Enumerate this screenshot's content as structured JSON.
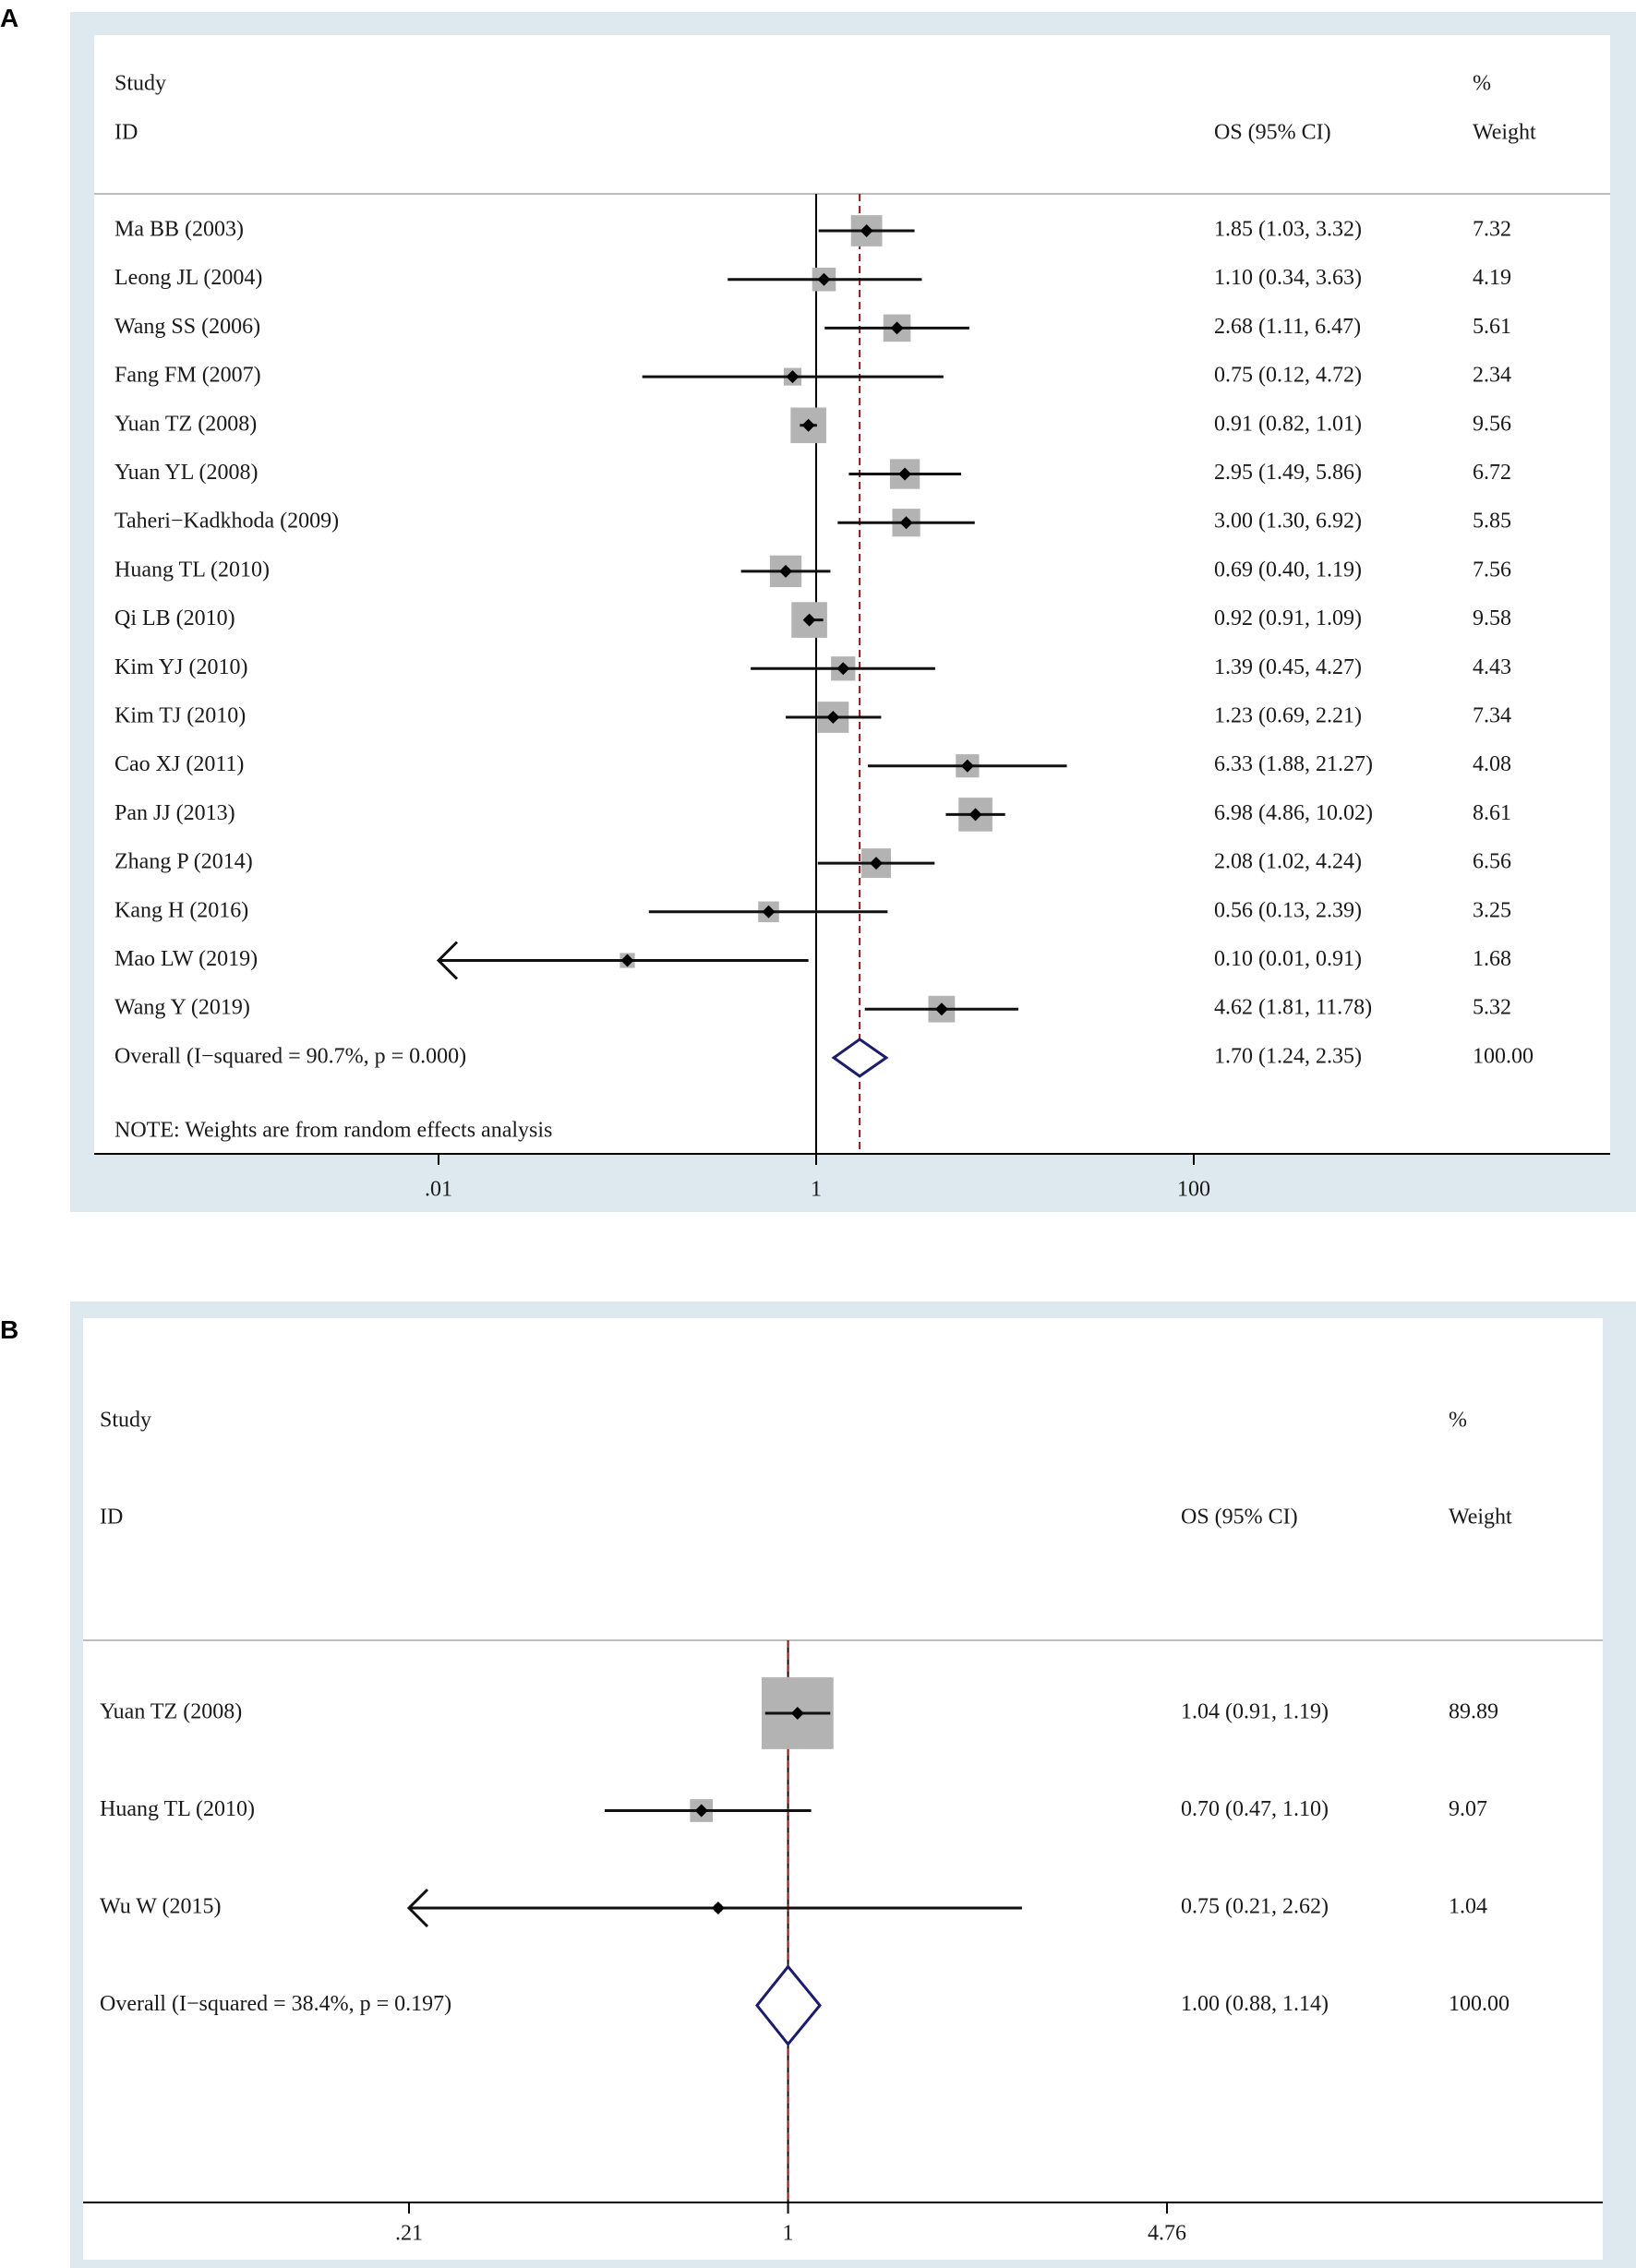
{
  "chart_data": [
    {
      "panel": "A",
      "type": "forest",
      "header": {
        "study": "Study",
        "id": "ID",
        "pct": "%",
        "es": "OS (95% CI)",
        "weight": "Weight"
      },
      "axis": {
        "scale": "log",
        "ticks": [
          ".01",
          "1",
          "100"
        ],
        "tick_values": [
          0.01,
          1,
          100
        ]
      },
      "studies": [
        {
          "name": "Ma BB (2003)",
          "es": 1.85,
          "lo": 1.03,
          "hi": 3.32,
          "text": "1.85 (1.03, 3.32)",
          "weight": "7.32"
        },
        {
          "name": "Leong JL (2004)",
          "es": 1.1,
          "lo": 0.34,
          "hi": 3.63,
          "text": "1.10 (0.34, 3.63)",
          "weight": "4.19"
        },
        {
          "name": "Wang SS (2006)",
          "es": 2.68,
          "lo": 1.11,
          "hi": 6.47,
          "text": "2.68 (1.11, 6.47)",
          "weight": "5.61"
        },
        {
          "name": "Fang FM (2007)",
          "es": 0.75,
          "lo": 0.12,
          "hi": 4.72,
          "text": "0.75 (0.12, 4.72)",
          "weight": "2.34"
        },
        {
          "name": "Yuan TZ (2008)",
          "es": 0.91,
          "lo": 0.82,
          "hi": 1.01,
          "text": "0.91 (0.82, 1.01)",
          "weight": "9.56"
        },
        {
          "name": "Yuan YL (2008)",
          "es": 2.95,
          "lo": 1.49,
          "hi": 5.86,
          "text": "2.95 (1.49, 5.86)",
          "weight": "6.72"
        },
        {
          "name": "Taheri−Kadkhoda (2009)",
          "es": 3.0,
          "lo": 1.3,
          "hi": 6.92,
          "text": "3.00 (1.30, 6.92)",
          "weight": "5.85"
        },
        {
          "name": "Huang TL (2010)",
          "es": 0.69,
          "lo": 0.4,
          "hi": 1.19,
          "text": "0.69 (0.40, 1.19)",
          "weight": "7.56"
        },
        {
          "name": "Qi LB (2010)",
          "es": 0.92,
          "lo": 0.91,
          "hi": 1.09,
          "text": "0.92 (0.91, 1.09)",
          "weight": "9.58"
        },
        {
          "name": "Kim YJ (2010)",
          "es": 1.39,
          "lo": 0.45,
          "hi": 4.27,
          "text": "1.39 (0.45, 4.27)",
          "weight": "4.43"
        },
        {
          "name": "Kim TJ (2010)",
          "es": 1.23,
          "lo": 0.69,
          "hi": 2.21,
          "text": "1.23 (0.69, 2.21)",
          "weight": "7.34"
        },
        {
          "name": "Cao XJ (2011)",
          "es": 6.33,
          "lo": 1.88,
          "hi": 21.27,
          "text": "6.33 (1.88, 21.27)",
          "weight": "4.08"
        },
        {
          "name": "Pan JJ (2013)",
          "es": 6.98,
          "lo": 4.86,
          "hi": 10.02,
          "text": "6.98 (4.86, 10.02)",
          "weight": "8.61"
        },
        {
          "name": "Zhang P (2014)",
          "es": 2.08,
          "lo": 1.02,
          "hi": 4.24,
          "text": "2.08 (1.02, 4.24)",
          "weight": "6.56"
        },
        {
          "name": "Kang H (2016)",
          "es": 0.56,
          "lo": 0.13,
          "hi": 2.39,
          "text": "0.56 (0.13, 2.39)",
          "weight": "3.25"
        },
        {
          "name": "Mao LW (2019)",
          "es": 0.1,
          "lo": 0.01,
          "hi": 0.91,
          "text": "0.10 (0.01, 0.91)",
          "weight": "1.68"
        },
        {
          "name": "Wang Y (2019)",
          "es": 4.62,
          "lo": 1.81,
          "hi": 11.78,
          "text": "4.62 (1.81, 11.78)",
          "weight": "5.32"
        }
      ],
      "overall": {
        "name": "Overall  (I−squared = 90.7%, p = 0.000)",
        "es": 1.7,
        "lo": 1.24,
        "hi": 2.35,
        "text": "1.70 (1.24, 2.35)",
        "weight": "100.00"
      },
      "note": "NOTE: Weights are from random effects analysis"
    },
    {
      "panel": "B",
      "type": "forest",
      "header": {
        "study": "Study",
        "id": "ID",
        "pct": "%",
        "es": "OS (95% CI)",
        "weight": "Weight"
      },
      "axis": {
        "scale": "log",
        "ticks": [
          ".21",
          "1",
          "4.76"
        ],
        "tick_values": [
          0.21,
          1,
          4.76
        ]
      },
      "studies": [
        {
          "name": "Yuan TZ (2008)",
          "es": 1.04,
          "lo": 0.91,
          "hi": 1.19,
          "text": "1.04 (0.91, 1.19)",
          "weight": "89.89"
        },
        {
          "name": "Huang TL (2010)",
          "es": 0.7,
          "lo": 0.47,
          "hi": 1.1,
          "text": "0.70 (0.47, 1.10)",
          "weight": "9.07"
        },
        {
          "name": "Wu W (2015)",
          "es": 0.75,
          "lo": 0.21,
          "hi": 2.62,
          "text": "0.75 (0.21, 2.62)",
          "weight": "1.04"
        }
      ],
      "overall": {
        "name": "Overall  (I−squared = 38.4%, p = 0.197)",
        "es": 1.0,
        "lo": 0.88,
        "hi": 1.14,
        "text": "1.00 (0.88, 1.14)",
        "weight": "100.00"
      },
      "note": ""
    }
  ],
  "colors": {
    "frame": "#dde9ee",
    "box": "#b3b3b3",
    "ci": "#111111",
    "diamond": "#1c1c6e",
    "refline": "#8b1a1a",
    "divider": "#bdbdbd"
  }
}
